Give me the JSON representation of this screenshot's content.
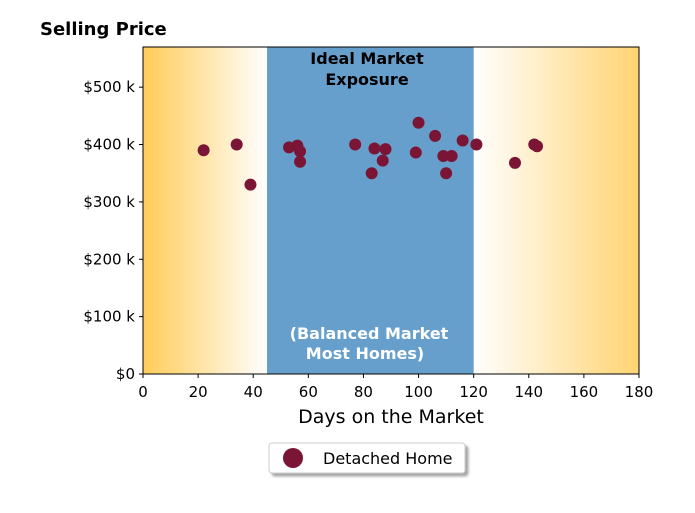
{
  "colors": {
    "point": "#7a1535",
    "ideal_band": "#679fcc",
    "fade": "#ffc94f",
    "annotation_top": "#000000",
    "annotation_bottom": "#ffffff"
  },
  "chart_data": {
    "type": "scatter",
    "title": "Selling Price",
    "xlabel": "Days on the Market",
    "ylabel": "",
    "xlim": [
      0,
      180
    ],
    "ylim": [
      0,
      570000
    ],
    "xticks": [
      0,
      20,
      40,
      60,
      80,
      100,
      120,
      140,
      160,
      180
    ],
    "xtick_labels": [
      "0",
      "20",
      "40",
      "60",
      "80",
      "100",
      "120",
      "140",
      "160",
      "180"
    ],
    "yticks": [
      0,
      100000,
      200000,
      300000,
      400000,
      500000
    ],
    "ytick_labels": [
      "$0",
      "$100 k",
      "$200 k",
      "$300 k",
      "$400 k",
      "$500 k"
    ],
    "grid": false,
    "legend_position": "bottom-center",
    "shaded_region": {
      "x_start": 45,
      "x_end": 120
    },
    "annotations": {
      "top": [
        "Ideal Market",
        "Exposure"
      ],
      "bottom": [
        "(Balanced Market",
        "Most Homes)"
      ]
    },
    "series": [
      {
        "name": "Detached Home",
        "points": [
          [
            22,
            390000
          ],
          [
            34,
            400000
          ],
          [
            39,
            330000
          ],
          [
            53,
            395000
          ],
          [
            56,
            398000
          ],
          [
            57,
            388000
          ],
          [
            57,
            370000
          ],
          [
            77,
            400000
          ],
          [
            83,
            350000
          ],
          [
            84,
            393000
          ],
          [
            87,
            372000
          ],
          [
            88,
            392000
          ],
          [
            99,
            386000
          ],
          [
            100,
            438000
          ],
          [
            106,
            415000
          ],
          [
            109,
            380000
          ],
          [
            110,
            350000
          ],
          [
            112,
            380000
          ],
          [
            116,
            407000
          ],
          [
            121,
            400000
          ],
          [
            135,
            368000
          ],
          [
            142,
            400000
          ],
          [
            143,
            397000
          ]
        ]
      }
    ]
  }
}
